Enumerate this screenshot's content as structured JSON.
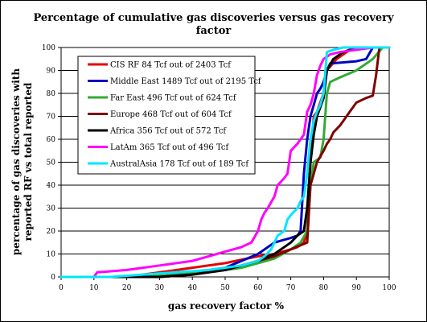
{
  "chart_data": {
    "type": "line",
    "title_line1": "Percentage of cumulative gas discoveries versus gas recovery",
    "title_line2": "factor",
    "xlabel": "gas recovery factor %",
    "ylabel_line1": "percentage of gas discoveries with",
    "ylabel_line2": "reported RF vs total reported",
    "xlim": [
      0,
      100
    ],
    "ylim": [
      0,
      100
    ],
    "xticks": [
      0,
      10,
      20,
      30,
      40,
      50,
      60,
      70,
      80,
      90,
      100
    ],
    "yticks": [
      0,
      10,
      20,
      30,
      40,
      50,
      60,
      70,
      80,
      90,
      100
    ],
    "grid": "horizontal",
    "legend_position": "upper-left",
    "series": [
      {
        "name": "CIS RF 84 Tcf out of 2403 Tcf",
        "color": "#e60000",
        "points": [
          [
            0,
            0
          ],
          [
            20,
            0
          ],
          [
            25,
            1
          ],
          [
            30,
            2
          ],
          [
            40,
            4
          ],
          [
            50,
            6
          ],
          [
            60,
            9
          ],
          [
            65,
            10
          ],
          [
            70,
            12
          ],
          [
            72,
            13
          ],
          [
            74,
            15
          ],
          [
            75,
            20
          ],
          [
            76,
            50
          ],
          [
            77,
            70
          ],
          [
            78,
            72
          ],
          [
            80,
            80
          ],
          [
            81,
            90
          ],
          [
            84,
            95
          ],
          [
            88,
            99
          ],
          [
            92,
            100
          ],
          [
            100,
            100
          ]
        ]
      },
      {
        "name": "Middle East 1489 Tcf out of 2195 Tcf",
        "color": "#0000c0",
        "points": [
          [
            0,
            0
          ],
          [
            30,
            0
          ],
          [
            40,
            2
          ],
          [
            50,
            4
          ],
          [
            55,
            7
          ],
          [
            60,
            10
          ],
          [
            65,
            15
          ],
          [
            70,
            17
          ],
          [
            72,
            18
          ],
          [
            73,
            20
          ],
          [
            74,
            45
          ],
          [
            75,
            60
          ],
          [
            76,
            70
          ],
          [
            77,
            75
          ],
          [
            78,
            80
          ],
          [
            79,
            82
          ],
          [
            80,
            85
          ],
          [
            81,
            90
          ],
          [
            82,
            93
          ],
          [
            90,
            94
          ],
          [
            93,
            95
          ],
          [
            95,
            100
          ],
          [
            100,
            100
          ]
        ]
      },
      {
        "name": "Far East 496 Tcf out of 624 Tcf",
        "color": "#33aa33",
        "points": [
          [
            0,
            0
          ],
          [
            25,
            0
          ],
          [
            35,
            1
          ],
          [
            45,
            2
          ],
          [
            55,
            4
          ],
          [
            60,
            6
          ],
          [
            65,
            8
          ],
          [
            70,
            12
          ],
          [
            73,
            15
          ],
          [
            75,
            20
          ],
          [
            76,
            40
          ],
          [
            77,
            50
          ],
          [
            79,
            52
          ],
          [
            80,
            60
          ],
          [
            81,
            80
          ],
          [
            82,
            85
          ],
          [
            85,
            87
          ],
          [
            90,
            90
          ],
          [
            95,
            95
          ],
          [
            98,
            100
          ],
          [
            100,
            100
          ]
        ]
      },
      {
        "name": "Europe 468 Tcf out of 604 Tcf",
        "color": "#800000",
        "points": [
          [
            0,
            0
          ],
          [
            30,
            0
          ],
          [
            40,
            1
          ],
          [
            50,
            3
          ],
          [
            55,
            5
          ],
          [
            60,
            7
          ],
          [
            65,
            9
          ],
          [
            70,
            12
          ],
          [
            75,
            15
          ],
          [
            76,
            40
          ],
          [
            77,
            45
          ],
          [
            78,
            50
          ],
          [
            80,
            55
          ],
          [
            81,
            58
          ],
          [
            82,
            60
          ],
          [
            83,
            63
          ],
          [
            85,
            66
          ],
          [
            86,
            68
          ],
          [
            88,
            72
          ],
          [
            90,
            76
          ],
          [
            93,
            78
          ],
          [
            95,
            79
          ],
          [
            96,
            88
          ],
          [
            97,
            100
          ],
          [
            100,
            100
          ]
        ]
      },
      {
        "name": "Africa 356 Tcf out of 572 Tcf",
        "color": "#000000",
        "points": [
          [
            0,
            0
          ],
          [
            30,
            0
          ],
          [
            40,
            1
          ],
          [
            50,
            3
          ],
          [
            55,
            5
          ],
          [
            60,
            7
          ],
          [
            65,
            10
          ],
          [
            70,
            15
          ],
          [
            72,
            18
          ],
          [
            74,
            20
          ],
          [
            75,
            30
          ],
          [
            76,
            50
          ],
          [
            77,
            62
          ],
          [
            78,
            70
          ],
          [
            79,
            74
          ],
          [
            80,
            78
          ],
          [
            81,
            90
          ],
          [
            83,
            95
          ],
          [
            86,
            98
          ],
          [
            90,
            100
          ],
          [
            100,
            100
          ]
        ]
      },
      {
        "name": "LatAm 365 Tcf out of 496 Tcf",
        "color": "#ff00ff",
        "points": [
          [
            0,
            0
          ],
          [
            10,
            0
          ],
          [
            11,
            2
          ],
          [
            20,
            3
          ],
          [
            30,
            5
          ],
          [
            40,
            7
          ],
          [
            50,
            11
          ],
          [
            55,
            13
          ],
          [
            58,
            15
          ],
          [
            60,
            20
          ],
          [
            61,
            25
          ],
          [
            62,
            28
          ],
          [
            63,
            30
          ],
          [
            65,
            35
          ],
          [
            66,
            40
          ],
          [
            68,
            43
          ],
          [
            69,
            45
          ],
          [
            70,
            55
          ],
          [
            72,
            58
          ],
          [
            73,
            60
          ],
          [
            74,
            62
          ],
          [
            75,
            72
          ],
          [
            76,
            75
          ],
          [
            77,
            80
          ],
          [
            78,
            88
          ],
          [
            79,
            92
          ],
          [
            80,
            95
          ],
          [
            82,
            97
          ],
          [
            85,
            98
          ],
          [
            90,
            99
          ],
          [
            95,
            100
          ],
          [
            100,
            100
          ]
        ]
      },
      {
        "name": "AustralAsia 178 Tcf out of 189 Tcf",
        "color": "#00e6ff",
        "points": [
          [
            0,
            0
          ],
          [
            15,
            0
          ],
          [
            25,
            1
          ],
          [
            35,
            2
          ],
          [
            45,
            3
          ],
          [
            55,
            5
          ],
          [
            60,
            7
          ],
          [
            62,
            9
          ],
          [
            64,
            12
          ],
          [
            65,
            15
          ],
          [
            66,
            18
          ],
          [
            68,
            20
          ],
          [
            69,
            25
          ],
          [
            70,
            27
          ],
          [
            72,
            30
          ],
          [
            73,
            33
          ],
          [
            74,
            35
          ],
          [
            75,
            45
          ],
          [
            76,
            60
          ],
          [
            77,
            68
          ],
          [
            78,
            72
          ],
          [
            79,
            75
          ],
          [
            80,
            80
          ],
          [
            81,
            98
          ],
          [
            83,
            99
          ],
          [
            86,
            100
          ],
          [
            100,
            100
          ]
        ]
      }
    ]
  }
}
